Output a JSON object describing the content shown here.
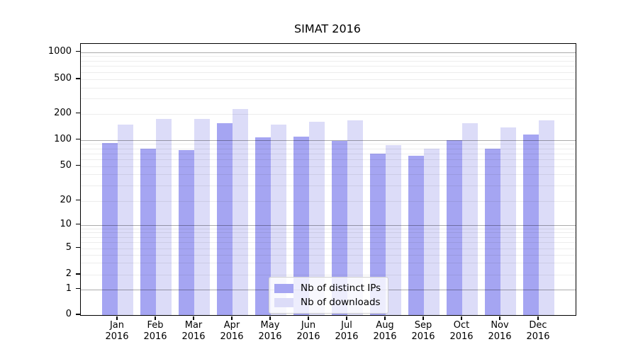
{
  "chart_data": {
    "type": "bar",
    "title": "SIMAT 2016",
    "categories": [
      "Jan 2016",
      "Feb 2016",
      "Mar 2016",
      "Apr 2016",
      "May 2016",
      "Jun 2016",
      "Jul 2016",
      "Aug 2016",
      "Sep 2016",
      "Oct 2016",
      "Nov 2016",
      "Dec 2016"
    ],
    "series": [
      {
        "name": "Nb of distinct IPs",
        "color": "#a5a5f2",
        "values": [
          92,
          80,
          76,
          156,
          108,
          110,
          97,
          70,
          66,
          100,
          80,
          116
        ]
      },
      {
        "name": "Nb of downloads",
        "color": "#dcdcf8",
        "values": [
          150,
          173,
          175,
          225,
          150,
          162,
          168,
          87,
          80,
          155,
          140,
          167
        ]
      }
    ],
    "yscale": "symlog",
    "yticks": [
      0,
      1,
      2,
      5,
      10,
      20,
      50,
      100,
      200,
      500,
      1000
    ],
    "ylim": [
      0,
      1240
    ],
    "grid": true,
    "grid_major_values": [
      1,
      10,
      100,
      1000
    ],
    "legend_position": "lower center"
  }
}
